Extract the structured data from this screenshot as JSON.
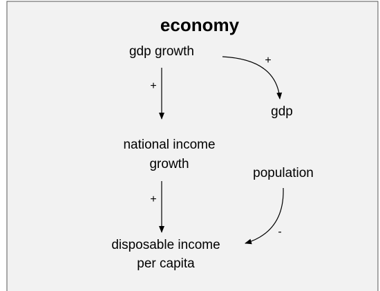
{
  "title": "economy",
  "nodes": [
    {
      "lines": [
        "gdp growth"
      ]
    },
    {
      "lines": [
        "gdp"
      ]
    },
    {
      "lines": [
        "national income",
        "growth"
      ]
    },
    {
      "lines": [
        "population"
      ]
    },
    {
      "lines": [
        "disposable income",
        "per capita"
      ]
    }
  ],
  "links": [
    {
      "polarity": "+"
    },
    {
      "polarity": "+"
    },
    {
      "polarity": "+"
    },
    {
      "polarity": "-"
    }
  ]
}
